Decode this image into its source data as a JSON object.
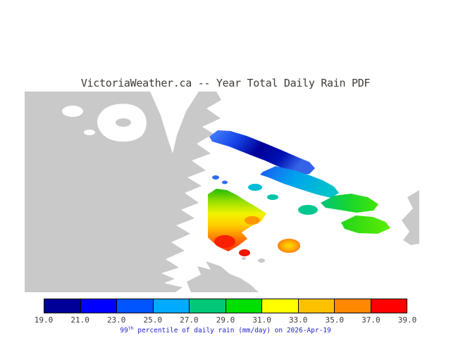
{
  "title": {
    "text": "VictoriaWeather.ca -- Year Total Daily Rain PDF",
    "color": "#3f3a36"
  },
  "map": {
    "land_color": "#c9c9c9",
    "water_color": "#ffffff",
    "region_colors": {
      "blue_dot": "#2f6cf0",
      "small_cyan": "#00bcd8",
      "cyan_green": "#00c4a8",
      "teal_blob": "#00c890",
      "red_patch": "#f82000",
      "orange_patch": "#ff9800",
      "red_islet": "#ee1400"
    }
  },
  "colorbar": {
    "tick_color": "#3f3a36",
    "colors": [
      "#000099",
      "#0000ff",
      "#0055ff",
      "#00aaff",
      "#00c878",
      "#00e000",
      "#ffff00",
      "#ffc000",
      "#ff8800",
      "#ff0000"
    ],
    "ticks": [
      "19.0",
      "21.0",
      "23.0",
      "25.0",
      "27.0",
      "29.0",
      "31.0",
      "33.0",
      "35.0",
      "37.0",
      "39.0"
    ]
  },
  "caption": {
    "num": "99",
    "sup": "th",
    "rest": " percentile of daily rain (mm/day) on 2026-Apr-19",
    "color": "#2222cc"
  },
  "chart_data": {
    "type": "heatmap",
    "title": "VictoriaWeather.ca -- Year Total Daily Rain PDF",
    "variable": "99th percentile of daily rain",
    "units": "mm/day",
    "date": "2026-Apr-19",
    "colorbar_ticks": [
      19.0,
      21.0,
      23.0,
      25.0,
      27.0,
      29.0,
      31.0,
      33.0,
      35.0,
      37.0,
      39.0
    ],
    "colorbar_colors": [
      "#000099",
      "#0000ff",
      "#0055ff",
      "#00aaff",
      "#00c878",
      "#00e000",
      "#ffff00",
      "#ffc000",
      "#ff8800",
      "#ff0000"
    ],
    "range": [
      19.0,
      39.0
    ],
    "legend_position": "bottom"
  }
}
